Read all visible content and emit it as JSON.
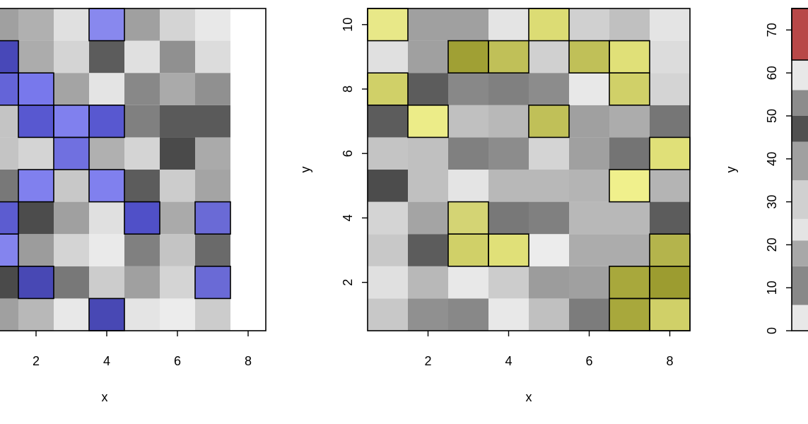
{
  "chart_data": [
    {
      "type": "heatmap",
      "title": "",
      "xlabel": "x",
      "ylabel": "",
      "x_ticks": [
        "2",
        "4",
        "6",
        "8"
      ],
      "y_ticks": [],
      "xlim": [
        0.5,
        8.5
      ],
      "ylim": [
        0.5,
        10.5
      ],
      "highlight_color": "#5a5ad6",
      "rows": [
        {
          "y": 1,
          "cells": [
            {
              "x": 1,
              "gray": "#a0a0a0"
            },
            {
              "x": 2,
              "gray": "#b8b8b8"
            },
            {
              "x": 3,
              "gray": "#e8e8e8"
            },
            {
              "x": 4,
              "gray": "#c0c0c0",
              "h": "#4848b4"
            },
            {
              "x": 5,
              "gray": "#e4e4e4"
            },
            {
              "x": 6,
              "gray": "#ececec"
            },
            {
              "x": 7,
              "gray": "#cccccc"
            }
          ]
        },
        {
          "y": 2,
          "cells": [
            {
              "x": 1,
              "gray": "#4a4a4a"
            },
            {
              "x": 2,
              "gray": "#c0c0c0",
              "h": "#4848b4"
            },
            {
              "x": 3,
              "gray": "#787878"
            },
            {
              "x": 4,
              "gray": "#cccccc"
            },
            {
              "x": 5,
              "gray": "#a0a0a0"
            },
            {
              "x": 6,
              "gray": "#d4d4d4"
            },
            {
              "x": 7,
              "gray": "#b0b0b0",
              "h": "#6a6ad6"
            }
          ]
        },
        {
          "y": 3,
          "cells": [
            {
              "x": 1,
              "gray": "#c8c8c8",
              "h": "#8484ee"
            },
            {
              "x": 2,
              "gray": "#9c9c9c"
            },
            {
              "x": 3,
              "gray": "#d4d4d4"
            },
            {
              "x": 4,
              "gray": "#eaeaea"
            },
            {
              "x": 5,
              "gray": "#808080"
            },
            {
              "x": 6,
              "gray": "#c4c4c4"
            },
            {
              "x": 7,
              "gray": "#6a6a6a"
            }
          ]
        },
        {
          "y": 4,
          "cells": [
            {
              "x": 1,
              "gray": "#b0b0b0",
              "h": "#5c5cd0"
            },
            {
              "x": 2,
              "gray": "#4c4c4c"
            },
            {
              "x": 3,
              "gray": "#a0a0a0"
            },
            {
              "x": 4,
              "gray": "#e0e0e0"
            },
            {
              "x": 5,
              "gray": "#b0b0b0",
              "h": "#5050c8"
            },
            {
              "x": 6,
              "gray": "#aaaaaa"
            },
            {
              "x": 7,
              "gray": "#b0b0b0",
              "h": "#6a6ad6"
            }
          ]
        },
        {
          "y": 5,
          "cells": [
            {
              "x": 1,
              "gray": "#787878"
            },
            {
              "x": 2,
              "gray": "#c8c8c8",
              "h": "#8080ee"
            },
            {
              "x": 3,
              "gray": "#c8c8c8"
            },
            {
              "x": 4,
              "gray": "#c8c8c8",
              "h": "#8080ee"
            },
            {
              "x": 5,
              "gray": "#5c5c5c"
            },
            {
              "x": 6,
              "gray": "#cccccc"
            },
            {
              "x": 7,
              "gray": "#a4a4a4"
            }
          ]
        },
        {
          "y": 6,
          "cells": [
            {
              "x": 1,
              "gray": "#c4c4c4"
            },
            {
              "x": 2,
              "gray": "#d4d4d4"
            },
            {
              "x": 3,
              "gray": "#b0b0b0",
              "h": "#7070e0"
            },
            {
              "x": 4,
              "gray": "#b0b0b0"
            },
            {
              "x": 5,
              "gray": "#d4d4d4"
            },
            {
              "x": 6,
              "gray": "#4a4a4a"
            },
            {
              "x": 7,
              "gray": "#aaaaaa"
            }
          ]
        },
        {
          "y": 7,
          "cells": [
            {
              "x": 1,
              "gray": "#c4c4c4"
            },
            {
              "x": 2,
              "gray": "#b0b0b0",
              "h": "#5858d0"
            },
            {
              "x": 3,
              "gray": "#c8c8c8",
              "h": "#8080ee"
            },
            {
              "x": 4,
              "gray": "#b0b0b0",
              "h": "#5858d0"
            },
            {
              "x": 5,
              "gray": "#808080"
            },
            {
              "x": 6,
              "gray": "#5a5a5a"
            },
            {
              "x": 7,
              "gray": "#5a5a5a"
            }
          ]
        },
        {
          "y": 8,
          "cells": [
            {
              "x": 1,
              "gray": "#b0b0b0",
              "h": "#6464d8"
            },
            {
              "x": 2,
              "gray": "#c8c8c8",
              "h": "#7878ec"
            },
            {
              "x": 3,
              "gray": "#a4a4a4"
            },
            {
              "x": 4,
              "gray": "#e4e4e4"
            },
            {
              "x": 5,
              "gray": "#888888"
            },
            {
              "x": 6,
              "gray": "#aaaaaa"
            },
            {
              "x": 7,
              "gray": "#909090"
            }
          ]
        },
        {
          "y": 9,
          "cells": [
            {
              "x": 1,
              "gray": "#b0b0b0",
              "h": "#4848b8"
            },
            {
              "x": 2,
              "gray": "#acacac"
            },
            {
              "x": 3,
              "gray": "#d4d4d4"
            },
            {
              "x": 4,
              "gray": "#5c5c5c"
            },
            {
              "x": 5,
              "gray": "#e0e0e0"
            },
            {
              "x": 6,
              "gray": "#909090"
            },
            {
              "x": 7,
              "gray": "#dcdcdc"
            }
          ]
        },
        {
          "y": 10,
          "cells": [
            {
              "x": 1,
              "gray": "#a0a0a0"
            },
            {
              "x": 2,
              "gray": "#b0b0b0"
            },
            {
              "x": 3,
              "gray": "#e0e0e0"
            },
            {
              "x": 4,
              "gray": "#c8c8c8",
              "h": "#8888ee"
            },
            {
              "x": 5,
              "gray": "#a0a0a0"
            },
            {
              "x": 6,
              "gray": "#d4d4d4"
            },
            {
              "x": 7,
              "gray": "#e8e8e8"
            }
          ]
        }
      ]
    },
    {
      "type": "heatmap",
      "title": "",
      "xlabel": "x",
      "ylabel": "y",
      "x_ticks": [
        "2",
        "4",
        "6",
        "8"
      ],
      "y_ticks": [
        "2",
        "4",
        "6",
        "8",
        "10"
      ],
      "xlim": [
        0.5,
        8.5
      ],
      "ylim": [
        0.5,
        10.5
      ],
      "highlight_color": "#c8c85a",
      "rows": [
        {
          "y": 1,
          "cells": [
            {
              "x": 1,
              "gray": "#c8c8c8"
            },
            {
              "x": 2,
              "gray": "#909090"
            },
            {
              "x": 3,
              "gray": "#888888"
            },
            {
              "x": 4,
              "gray": "#e8e8e8"
            },
            {
              "x": 5,
              "gray": "#c0c0c0"
            },
            {
              "x": 6,
              "gray": "#7c7c7c"
            },
            {
              "x": 7,
              "gray": "#b0b0b0",
              "h": "#a8a83c"
            },
            {
              "x": 8,
              "gray": "#c8c8c8",
              "h": "#d0d068"
            }
          ]
        },
        {
          "y": 2,
          "cells": [
            {
              "x": 1,
              "gray": "#e0e0e0"
            },
            {
              "x": 2,
              "gray": "#b8b8b8"
            },
            {
              "x": 3,
              "gray": "#e8e8e8"
            },
            {
              "x": 4,
              "gray": "#cccccc"
            },
            {
              "x": 5,
              "gray": "#9c9c9c"
            },
            {
              "x": 6,
              "gray": "#a0a0a0"
            },
            {
              "x": 7,
              "gray": "#b0b0b0",
              "h": "#a8a83c"
            },
            {
              "x": 8,
              "gray": "#a0a0a0",
              "h": "#9c9c30"
            }
          ]
        },
        {
          "y": 3,
          "cells": [
            {
              "x": 1,
              "gray": "#c8c8c8"
            },
            {
              "x": 2,
              "gray": "#5c5c5c"
            },
            {
              "x": 3,
              "gray": "#c8c8c8",
              "h": "#d0d068"
            },
            {
              "x": 4,
              "gray": "#e0e0e0",
              "h": "#e0e078"
            },
            {
              "x": 5,
              "gray": "#ececec"
            },
            {
              "x": 6,
              "gray": "#acacac"
            },
            {
              "x": 7,
              "gray": "#acacac"
            },
            {
              "x": 8,
              "gray": "#b8b8b8",
              "h": "#b4b44c"
            }
          ]
        },
        {
          "y": 4,
          "cells": [
            {
              "x": 1,
              "gray": "#d4d4d4"
            },
            {
              "x": 2,
              "gray": "#a4a4a4"
            },
            {
              "x": 3,
              "gray": "#d4d4d4",
              "h": "#d4d474"
            },
            {
              "x": 4,
              "gray": "#787878"
            },
            {
              "x": 5,
              "gray": "#808080"
            },
            {
              "x": 6,
              "gray": "#b8b8b8"
            },
            {
              "x": 7,
              "gray": "#b8b8b8"
            },
            {
              "x": 8,
              "gray": "#5c5c5c"
            }
          ]
        },
        {
          "y": 5,
          "cells": [
            {
              "x": 1,
              "gray": "#4c4c4c"
            },
            {
              "x": 2,
              "gray": "#c0c0c0"
            },
            {
              "x": 3,
              "gray": "#e4e4e4"
            },
            {
              "x": 4,
              "gray": "#b8b8b8"
            },
            {
              "x": 5,
              "gray": "#b8b8b8"
            },
            {
              "x": 6,
              "gray": "#b4b4b4"
            },
            {
              "x": 7,
              "gray": "#ececec",
              "h": "#f0f08c"
            },
            {
              "x": 8,
              "gray": "#b4b4b4"
            }
          ]
        },
        {
          "y": 6,
          "cells": [
            {
              "x": 1,
              "gray": "#c4c4c4"
            },
            {
              "x": 2,
              "gray": "#c0c0c0"
            },
            {
              "x": 3,
              "gray": "#808080"
            },
            {
              "x": 4,
              "gray": "#8c8c8c"
            },
            {
              "x": 5,
              "gray": "#d4d4d4"
            },
            {
              "x": 6,
              "gray": "#a0a0a0"
            },
            {
              "x": 7,
              "gray": "#747474"
            },
            {
              "x": 8,
              "gray": "#e0e0e0",
              "h": "#e0e078"
            }
          ]
        },
        {
          "y": 7,
          "cells": [
            {
              "x": 1,
              "gray": "#5c5c5c"
            },
            {
              "x": 2,
              "gray": "#ececec",
              "h": "#ecec88"
            },
            {
              "x": 3,
              "gray": "#c0c0c0"
            },
            {
              "x": 4,
              "gray": "#b8b8b8"
            },
            {
              "x": 5,
              "gray": "#b8b8b8",
              "h": "#c0c058"
            },
            {
              "x": 6,
              "gray": "#a0a0a0"
            },
            {
              "x": 7,
              "gray": "#acacac"
            },
            {
              "x": 8,
              "gray": "#767676"
            }
          ]
        },
        {
          "y": 8,
          "cells": [
            {
              "x": 1,
              "gray": "#c8c8c8",
              "h": "#d0d068"
            },
            {
              "x": 2,
              "gray": "#5c5c5c"
            },
            {
              "x": 3,
              "gray": "#888888"
            },
            {
              "x": 4,
              "gray": "#808080"
            },
            {
              "x": 5,
              "gray": "#8c8c8c"
            },
            {
              "x": 6,
              "gray": "#e8e8e8"
            },
            {
              "x": 7,
              "gray": "#c8c8c8",
              "h": "#d0d068"
            },
            {
              "x": 8,
              "gray": "#d4d4d4"
            }
          ]
        },
        {
          "y": 9,
          "cells": [
            {
              "x": 1,
              "gray": "#e0e0e0"
            },
            {
              "x": 2,
              "gray": "#a0a0a0"
            },
            {
              "x": 3,
              "gray": "#a0a0a0",
              "h": "#a0a034"
            },
            {
              "x": 4,
              "gray": "#b8b8b8",
              "h": "#c0c058"
            },
            {
              "x": 5,
              "gray": "#d0d0d0"
            },
            {
              "x": 6,
              "gray": "#b8b8b8",
              "h": "#c0c058"
            },
            {
              "x": 7,
              "gray": "#e0e0e0",
              "h": "#e0e078"
            },
            {
              "x": 8,
              "gray": "#dcdcdc"
            }
          ]
        },
        {
          "y": 10,
          "cells": [
            {
              "x": 1,
              "gray": "#e4e4e4",
              "h": "#e8e888"
            },
            {
              "x": 2,
              "gray": "#a0a0a0"
            },
            {
              "x": 3,
              "gray": "#a0a0a0"
            },
            {
              "x": 4,
              "gray": "#e4e4e4"
            },
            {
              "x": 5,
              "gray": "#d8d8d8",
              "h": "#dcdc74"
            },
            {
              "x": 6,
              "gray": "#d0d0d0"
            },
            {
              "x": 7,
              "gray": "#c0c0c0"
            },
            {
              "x": 8,
              "gray": "#e4e4e4"
            }
          ]
        }
      ]
    },
    {
      "type": "heatmap",
      "title": "",
      "xlabel": "",
      "ylabel": "y",
      "x_ticks": [],
      "y_ticks": [
        "0",
        "10",
        "20",
        "30",
        "40",
        "50",
        "60",
        "70"
      ],
      "ylim": [
        0,
        75
      ],
      "highlight_color": "#b84848",
      "bands": [
        {
          "from": 0,
          "to": 6,
          "gray": "#e8e8e8"
        },
        {
          "from": 6,
          "to": 15,
          "gray": "#888888"
        },
        {
          "from": 15,
          "to": 21,
          "gray": "#a8a8a8"
        },
        {
          "from": 21,
          "to": 26,
          "gray": "#e4e4e4"
        },
        {
          "from": 26,
          "to": 35,
          "gray": "#d0d0d0"
        },
        {
          "from": 35,
          "to": 44,
          "gray": "#a0a0a0"
        },
        {
          "from": 44,
          "to": 50,
          "gray": "#505050"
        },
        {
          "from": 50,
          "to": 56,
          "gray": "#8c8c8c"
        },
        {
          "from": 56,
          "to": 63,
          "gray": "#e8e8e8"
        },
        {
          "from": 63,
          "to": 75,
          "gray": "#c0c0c0",
          "h": "#b84848"
        }
      ]
    }
  ]
}
